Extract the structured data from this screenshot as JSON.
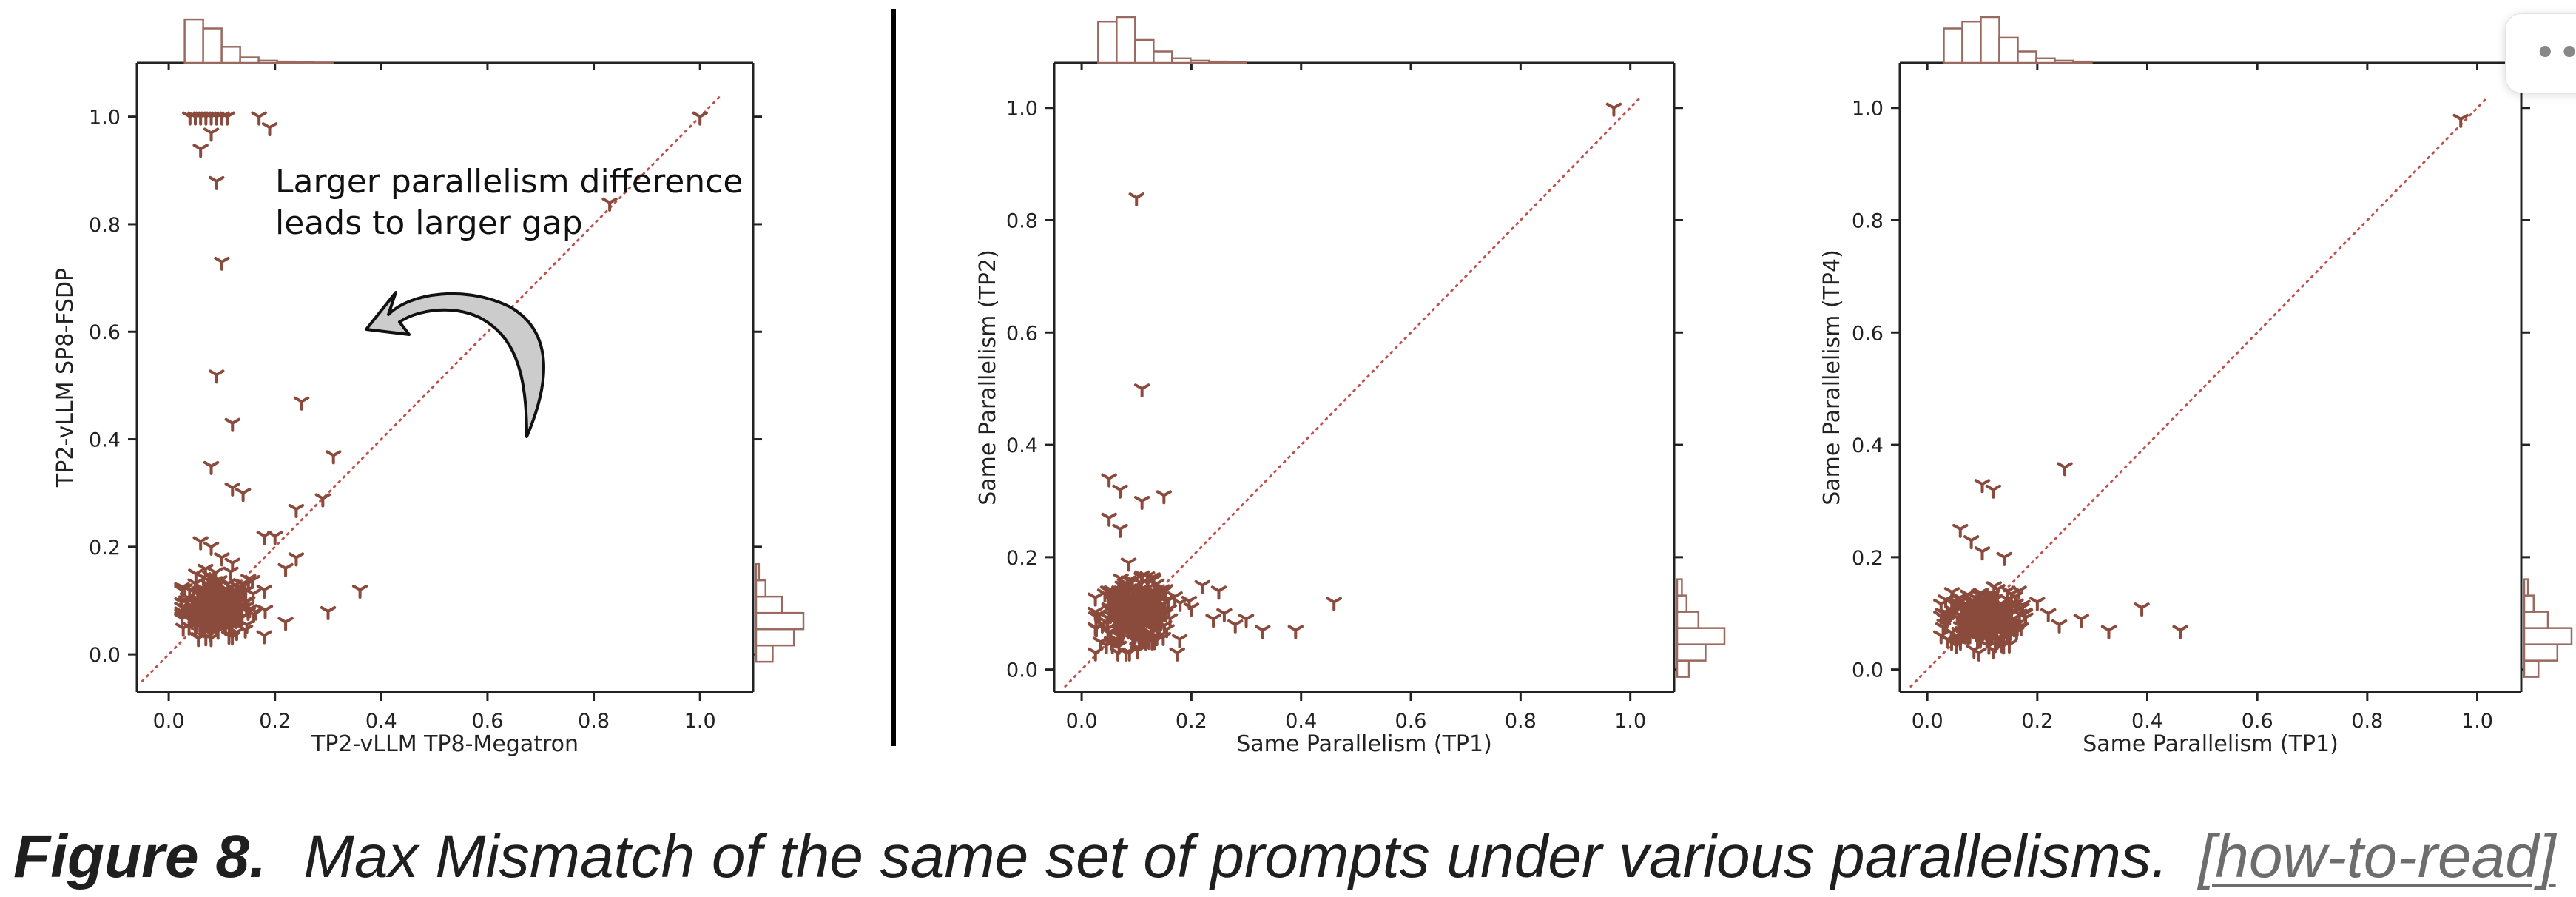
{
  "chart_data": [
    {
      "type": "scatter",
      "title": "",
      "xlabel": "TP2-vLLM TP8-Megatron",
      "ylabel": "TP2-vLLM SP8-FSDP",
      "xlim": [
        -0.06,
        1.1
      ],
      "ylim": [
        -0.07,
        1.1
      ],
      "xticks": [
        "0.0",
        "0.2",
        "0.4",
        "0.6",
        "0.8",
        "1.0"
      ],
      "yticks": [
        "0.0",
        "0.2",
        "0.4",
        "0.6",
        "0.8",
        "1.0"
      ],
      "marker": "tri-down",
      "color": "#8a4a3c",
      "reference_line": "y = x",
      "marginal_histograms": true,
      "annotation": {
        "lines": [
          "Larger parallelism difference",
          "leads to larger gap"
        ],
        "arrow": "curved-left"
      },
      "points": [
        [
          0.04,
          1.0
        ],
        [
          0.05,
          1.0
        ],
        [
          0.06,
          1.0
        ],
        [
          0.07,
          1.0
        ],
        [
          0.08,
          1.0
        ],
        [
          0.09,
          1.0
        ],
        [
          0.1,
          1.0
        ],
        [
          0.11,
          1.0
        ],
        [
          0.17,
          1.0
        ],
        [
          0.19,
          0.98
        ],
        [
          0.06,
          0.94
        ],
        [
          0.08,
          0.97
        ],
        [
          0.09,
          0.88
        ],
        [
          0.1,
          0.73
        ],
        [
          0.09,
          0.52
        ],
        [
          0.12,
          0.43
        ],
        [
          0.25,
          0.47
        ],
        [
          0.08,
          0.35
        ],
        [
          0.12,
          0.31
        ],
        [
          0.14,
          0.3
        ],
        [
          0.31,
          0.37
        ],
        [
          0.24,
          0.27
        ],
        [
          0.29,
          0.29
        ],
        [
          0.36,
          0.12
        ],
        [
          0.3,
          0.08
        ],
        [
          0.22,
          0.06
        ],
        [
          0.18,
          0.22
        ],
        [
          0.2,
          0.22
        ],
        [
          0.24,
          0.18
        ],
        [
          0.22,
          0.16
        ],
        [
          0.83,
          0.84
        ],
        [
          1.0,
          1.0
        ],
        [
          0.06,
          0.21
        ],
        [
          0.08,
          0.2
        ],
        [
          0.1,
          0.18
        ],
        [
          0.12,
          0.17
        ],
        [
          0.15,
          0.14
        ],
        [
          0.18,
          0.12
        ]
      ],
      "cluster": {
        "x_center": 0.09,
        "y_center": 0.09,
        "x_spread": 0.06,
        "y_spread": 0.05,
        "count": 260
      },
      "histogram_x": [
        0.95,
        0.75,
        0.35,
        0.12,
        0.05,
        0.03,
        0.02,
        0.01
      ],
      "histogram_y": [
        0.35,
        0.8,
        1.0,
        0.55,
        0.2,
        0.06
      ]
    },
    {
      "type": "scatter",
      "title": "",
      "xlabel": "Same Parallelism (TP1)",
      "ylabel": "Same Parallelism (TP2)",
      "xlim": [
        -0.05,
        1.08
      ],
      "ylim": [
        -0.04,
        1.08
      ],
      "xticks": [
        "0.0",
        "0.2",
        "0.4",
        "0.6",
        "0.8",
        "1.0"
      ],
      "yticks": [
        "0.0",
        "0.2",
        "0.4",
        "0.6",
        "0.8",
        "1.0"
      ],
      "marker": "tri-down",
      "color": "#8a4a3c",
      "reference_line": "y = x",
      "marginal_histograms": true,
      "points": [
        [
          0.1,
          0.84
        ],
        [
          0.11,
          0.5
        ],
        [
          0.05,
          0.34
        ],
        [
          0.07,
          0.32
        ],
        [
          0.11,
          0.3
        ],
        [
          0.15,
          0.31
        ],
        [
          0.05,
          0.27
        ],
        [
          0.07,
          0.25
        ],
        [
          0.22,
          0.15
        ],
        [
          0.25,
          0.14
        ],
        [
          0.26,
          0.1
        ],
        [
          0.28,
          0.08
        ],
        [
          0.33,
          0.07
        ],
        [
          0.39,
          0.07
        ],
        [
          0.46,
          0.12
        ],
        [
          0.97,
          1.0
        ],
        [
          0.2,
          0.11
        ],
        [
          0.24,
          0.09
        ],
        [
          0.17,
          0.13
        ],
        [
          0.3,
          0.09
        ]
      ],
      "cluster": {
        "x_center": 0.1,
        "y_center": 0.1,
        "x_spread": 0.06,
        "y_spread": 0.05,
        "count": 300
      },
      "histogram_x": [
        0.9,
        1.0,
        0.5,
        0.25,
        0.1,
        0.05,
        0.03,
        0.02
      ],
      "histogram_y": [
        0.25,
        0.6,
        1.0,
        0.45,
        0.2,
        0.1
      ]
    },
    {
      "type": "scatter",
      "title": "",
      "xlabel": "Same Parallelism (TP1)",
      "ylabel": "Same Parallelism (TP4)",
      "xlim": [
        -0.05,
        1.08
      ],
      "ylim": [
        -0.04,
        1.08
      ],
      "xticks": [
        "0.0",
        "0.2",
        "0.4",
        "0.6",
        "0.8",
        "1.0"
      ],
      "yticks": [
        "0.0",
        "0.2",
        "0.4",
        "0.6",
        "0.8",
        "1.0"
      ],
      "marker": "tri-down",
      "color": "#8a4a3c",
      "reference_line": "y = x",
      "marginal_histograms": true,
      "points": [
        [
          0.97,
          0.98
        ],
        [
          0.25,
          0.36
        ],
        [
          0.1,
          0.33
        ],
        [
          0.12,
          0.32
        ],
        [
          0.39,
          0.11
        ],
        [
          0.46,
          0.07
        ],
        [
          0.33,
          0.07
        ],
        [
          0.28,
          0.09
        ],
        [
          0.24,
          0.08
        ],
        [
          0.2,
          0.12
        ],
        [
          0.22,
          0.1
        ],
        [
          0.16,
          0.13
        ],
        [
          0.06,
          0.25
        ],
        [
          0.08,
          0.23
        ],
        [
          0.1,
          0.21
        ],
        [
          0.14,
          0.2
        ]
      ],
      "cluster": {
        "x_center": 0.1,
        "y_center": 0.09,
        "x_spread": 0.06,
        "y_spread": 0.045,
        "count": 300
      },
      "histogram_x": [
        0.75,
        0.9,
        1.0,
        0.55,
        0.25,
        0.1,
        0.05,
        0.03
      ],
      "histogram_y": [
        0.3,
        0.7,
        1.0,
        0.5,
        0.2,
        0.08
      ]
    }
  ],
  "caption": {
    "figure_number": "Figure 8.",
    "text": "Max Mismatch of the same set of prompts under various parallelisms.",
    "link": "[how-to-read]"
  },
  "more_button": {
    "icon": "more-dots-icon",
    "label": "•••"
  }
}
